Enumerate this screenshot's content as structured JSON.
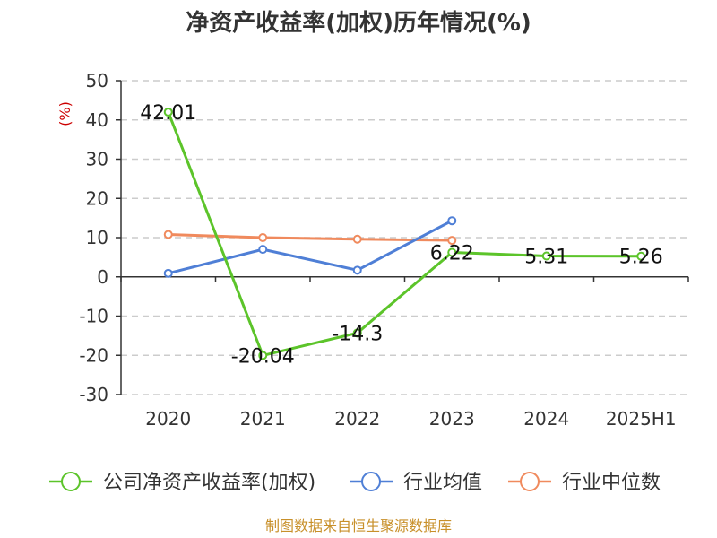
{
  "chart_data": {
    "type": "line",
    "title": "净资产收益率(加权)历年情况(%)",
    "ylabel": "(%)",
    "categories": [
      "2020",
      "2021",
      "2022",
      "2023",
      "2024",
      "2025H1"
    ],
    "ylim": [
      -30,
      50
    ],
    "yticks": [
      50,
      40,
      30,
      20,
      10,
      0,
      -10,
      -20,
      -30
    ],
    "grid": true,
    "legend_position": "bottom",
    "series": [
      {
        "name": "公司净资产收益率(加权)",
        "color": "#5cc42a",
        "values": [
          42.01,
          -20.04,
          -14.3,
          6.22,
          5.31,
          5.26
        ],
        "labels": [
          "42.01",
          "-20.04",
          "-14.3",
          "6.22",
          "5.31",
          "5.26"
        ]
      },
      {
        "name": "行业均值",
        "color": "#4f7fd6",
        "values": [
          0.9,
          7.0,
          1.7,
          14.3,
          null,
          null
        ]
      },
      {
        "name": "行业中位数",
        "color": "#f08a5d",
        "values": [
          10.8,
          10.0,
          9.6,
          9.3,
          null,
          null
        ]
      }
    ]
  },
  "source": "制图数据来自恒生聚源数据库"
}
